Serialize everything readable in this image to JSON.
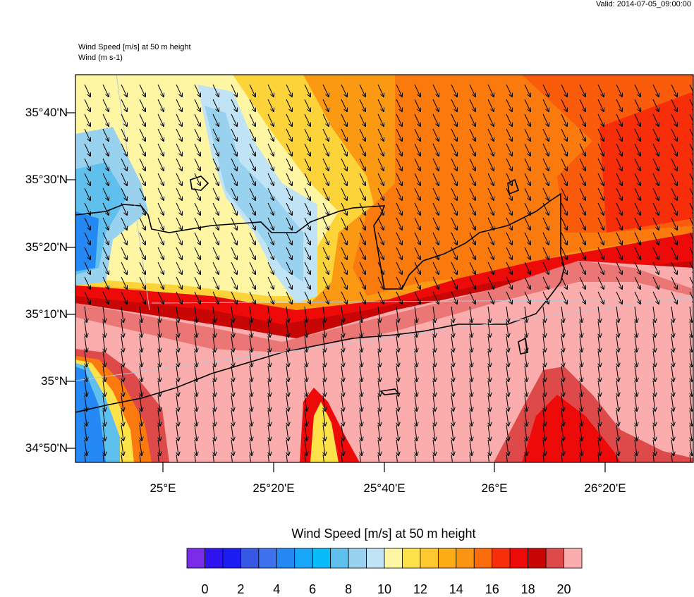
{
  "header": {
    "valid": "Valid: 2014-07-05_09:00:00",
    "line1": "Wind Speed [m/s] at 50 m height",
    "line2": "Wind   (m s-1)"
  },
  "map": {
    "lat_labels": [
      "35°40'N",
      "35°30'N",
      "35°20'N",
      "35°10'N",
      "35°N",
      "34°50'N"
    ],
    "lon_labels": [
      "25°E",
      "25°20'E",
      "25°40'E",
      "26°E",
      "26°20'E"
    ],
    "wind_direction": "north-northwest",
    "field_range_ms": [
      0,
      20
    ]
  },
  "colorbar": {
    "title": "Wind Speed [m/s] at 50 m height",
    "labels": [
      "0",
      "2",
      "4",
      "6",
      "8",
      "10",
      "12",
      "14",
      "16",
      "18",
      "20"
    ],
    "colors": [
      "#7b2ce8",
      "#3014f0",
      "#1b1df2",
      "#3658e4",
      "#3d71ee",
      "#2488f5",
      "#18a6f8",
      "#08bbf9",
      "#5fc0ee",
      "#98d2ee",
      "#c0e4f5",
      "#fef6a2",
      "#fee24a",
      "#fec82e",
      "#fdac13",
      "#fb9410",
      "#fb6c0c",
      "#f82e0a",
      "#ef0a0a",
      "#c80606",
      "#de4a4a",
      "#fbacac"
    ]
  }
}
